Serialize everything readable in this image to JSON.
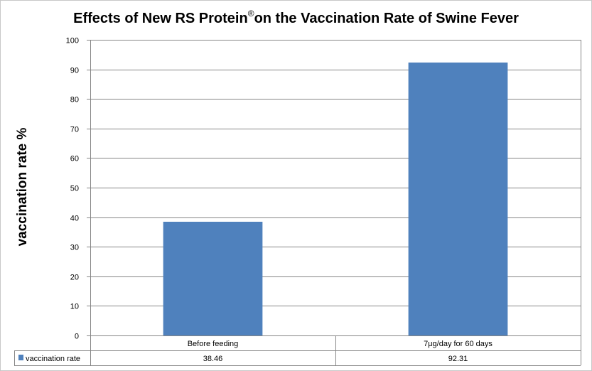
{
  "chart_data": {
    "type": "bar",
    "title": "Effects of New RS Protein",
    "title_mark": "®",
    "title_suffix": "on the Vaccination Rate of  Swine Fever",
    "xlabel": "",
    "ylabel": "vaccination rate %",
    "categories": [
      "Before feeding",
      "7μg/day for 60 days"
    ],
    "series": [
      {
        "name": "vaccination rate",
        "values": [
          38.46,
          92.31
        ],
        "color": "#4f81bd"
      }
    ],
    "value_labels": [
      "38.46",
      "92.31"
    ],
    "ylim": [
      0,
      100
    ],
    "yticks": [
      0,
      10,
      20,
      30,
      40,
      50,
      60,
      70,
      80,
      90,
      100
    ],
    "grid": true,
    "legend": "data-table",
    "grid_color": "#868686"
  }
}
